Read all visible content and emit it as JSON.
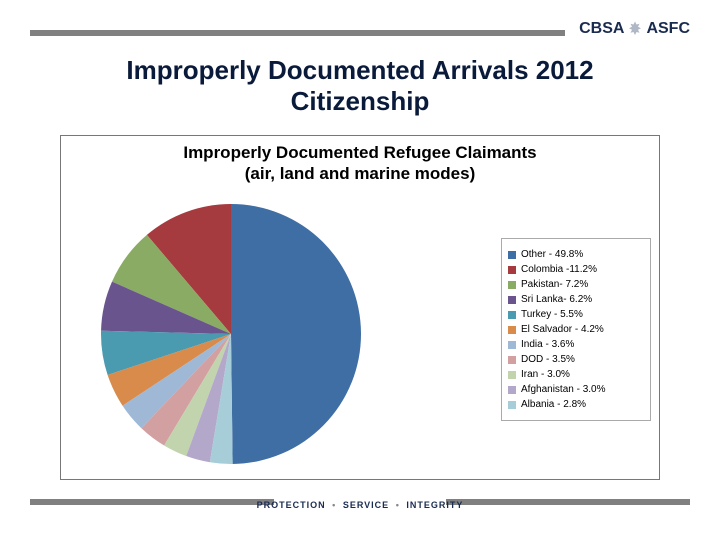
{
  "header": {
    "logo_left": "CBSA",
    "logo_right": "ASFC",
    "leaf_color": "#b0b8c5",
    "logo_text_color": "#1a2b50",
    "rule_color": "#808080"
  },
  "slide": {
    "title_line1": "Improperly Documented Arrivals 2012",
    "title_line2": "Citizenship",
    "title_color": "#0a1a3a",
    "title_fontsize": 26
  },
  "chart": {
    "type": "pie",
    "title_line1": "Improperly Documented Refugee Claimants",
    "title_line2": "(air, land and marine modes)",
    "title_fontsize": 17,
    "box_border": "#777777",
    "legend_border": "#aaaaaa",
    "pie_radius": 130,
    "start_angle_deg": -90,
    "direction": "cw",
    "background_color": "#ffffff",
    "slices": [
      {
        "label": "Other - 49.8%",
        "value": 49.8,
        "color": "#3f6ea5"
      },
      {
        "label": "Colombia -11.2%",
        "value": 11.2,
        "color": "#a63b3f"
      },
      {
        "label": "Pakistan- 7.2%",
        "value": 7.2,
        "color": "#8aab63"
      },
      {
        "label": "Sri Lanka- 6.2%",
        "value": 6.2,
        "color": "#6a548e"
      },
      {
        "label": "Turkey - 5.5%",
        "value": 5.5,
        "color": "#4a9bb0"
      },
      {
        "label": "El Salvador - 4.2%",
        "value": 4.2,
        "color": "#d88b4a"
      },
      {
        "label": "India - 3.6%",
        "value": 3.6,
        "color": "#9fb8d6"
      },
      {
        "label": "DOD - 3.5%",
        "value": 3.5,
        "color": "#d3a0a2"
      },
      {
        "label": "Iran - 3.0%",
        "value": 3.0,
        "color": "#c2d4ae"
      },
      {
        "label": "Afghanistan - 3.0%",
        "value": 3.0,
        "color": "#b4a8ca"
      },
      {
        "label": "Albania - 2.8%",
        "value": 2.8,
        "color": "#a6cdd8"
      }
    ]
  },
  "footer": {
    "w1": "PROTECTION",
    "w2": "SERVICE",
    "w3": "INTEGRITY",
    "text_color": "#1a2b50",
    "rule_color": "#808080"
  }
}
